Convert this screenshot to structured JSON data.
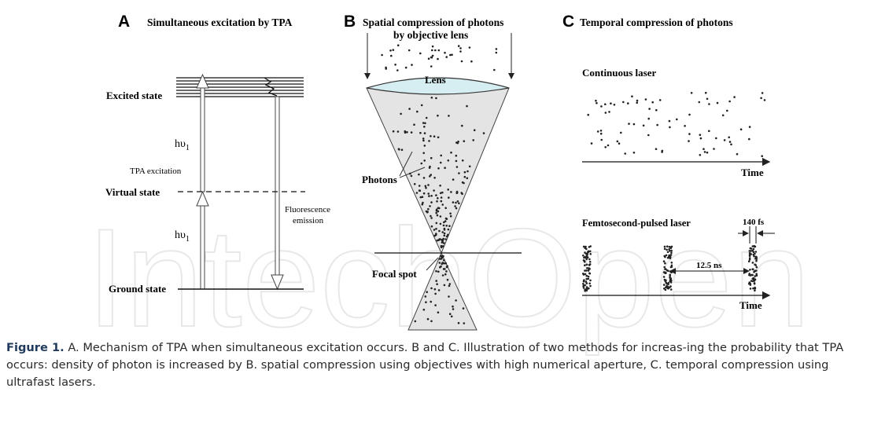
{
  "panelA": {
    "letter": "A",
    "title": "Simultaneous excitation by TPA",
    "excited_state": "Excited state",
    "virtual_state": "Virtual state",
    "ground_state": "Ground state",
    "photon_label": "hυ",
    "photon_sub": "1",
    "tpa_excitation": "TPA excitation",
    "fluorescence_line1": "Fluorescence",
    "fluorescence_line2": "emission"
  },
  "panelB": {
    "letter": "B",
    "title_line1": "Spatial compression of photons",
    "title_line2": "by objective lens",
    "lens": "Lens",
    "photons": "Photons",
    "focal_spot": "Focal spot"
  },
  "panelC": {
    "letter": "C",
    "title": "Temporal compression of photons",
    "continuous": "Continuous laser",
    "time1": "Time",
    "pulsed": "Femtosecond-pulsed laser",
    "pulse_width": "140 fs",
    "period": "12.5 ns",
    "time2": "Time"
  },
  "watermark": {
    "text": "IntechOpen"
  },
  "caption": {
    "label": "Figure 1.",
    "text": " A. Mechanism of TPA when simultaneous excitation occurs. B and C. Illustration of two methods for increas-ing the probability that TPA occurs: density of photon is increased by B. spatial compression using objectives with high numerical aperture, C. temporal compression using ultrafast lasers."
  },
  "colors": {
    "lens_fill": "#d6eef2",
    "cone_fill": "#e2e2e2",
    "caption_label": "#1f3a5c"
  }
}
